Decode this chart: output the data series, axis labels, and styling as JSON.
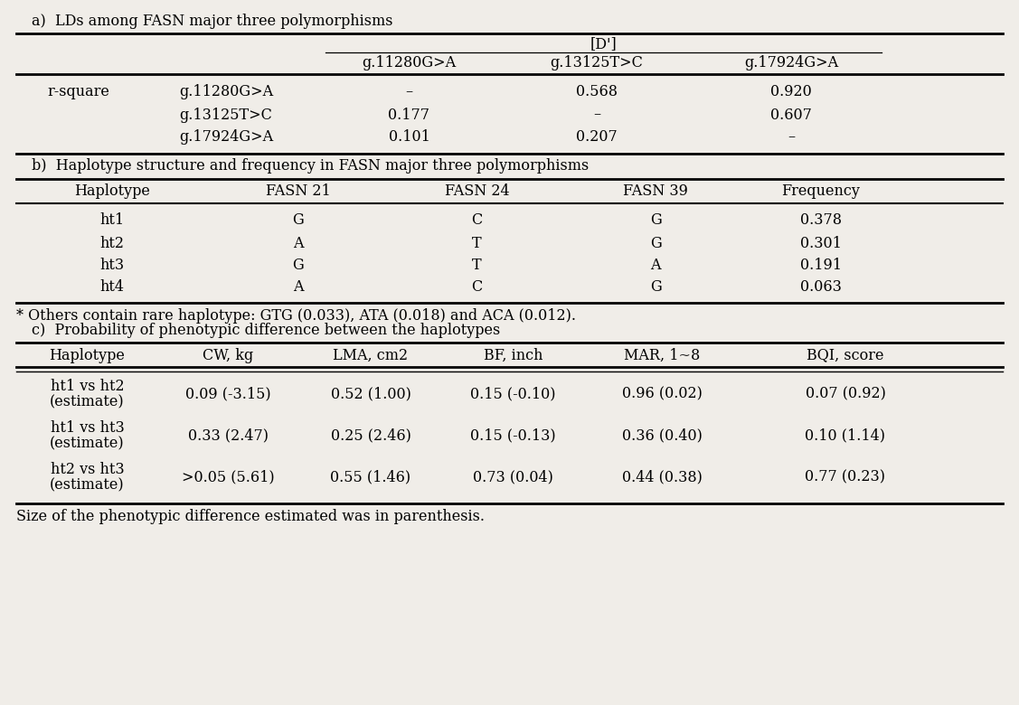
{
  "title_a": "a)  LDs among FASN major three polymorphisms",
  "title_b": "b)  Haplotype structure and frequency in FASN major three polymorphisms",
  "title_c": "c)  Probability of phenotypic difference between the haplotypes",
  "footnote_star": "* Others contain rare haplotype: GTG (0.033), ATA (0.018) and ACA (0.012).",
  "footnote_size": "Size of the phenotypic difference estimated was in parenthesis.",
  "table_a": {
    "dp_label": "[D']",
    "col_headers_3": [
      "g.11280G>A",
      "g.13125T>C",
      "g.17924G>A"
    ],
    "rows": [
      [
        "r-square",
        "g.11280G>A",
        "–",
        "0.568",
        "0.920"
      ],
      [
        "",
        "g.13125T>C",
        "0.177",
        "–",
        "0.607"
      ],
      [
        "",
        "g.17924G>A",
        "0.101",
        "0.207",
        "–"
      ]
    ]
  },
  "table_b": {
    "col_headers": [
      "Haplotype",
      "FASN 21",
      "FASN 24",
      "FASN 39",
      "Frequency"
    ],
    "rows": [
      [
        "ht1",
        "G",
        "C",
        "G",
        "0.378"
      ],
      [
        "ht2",
        "A",
        "T",
        "G",
        "0.301"
      ],
      [
        "ht3",
        "G",
        "T",
        "A",
        "0.191"
      ],
      [
        "ht4",
        "A",
        "C",
        "G",
        "0.063"
      ]
    ]
  },
  "table_c": {
    "col_headers": [
      "Haplotype",
      "CW, kg",
      "LMA, cm2",
      "BF, inch",
      "MAR, 1~8",
      "BQI, score"
    ],
    "rows": [
      [
        "ht1 vs ht2\n(estimate)",
        "0.09 (-3.15)",
        "0.52 (1.00)",
        "0.15 (-0.10)",
        "0.96 (0.02)",
        "0.07 (0.92)"
      ],
      [
        "ht1 vs ht3\n(estimate)",
        "0.33 (2.47)",
        "0.25 (2.46)",
        "0.15 (-0.13)",
        "0.36 (0.40)",
        "0.10 (1.14)"
      ],
      [
        "ht2 vs ht3\n(estimate)",
        ">0.05 (5.61)",
        "0.55 (1.46)",
        "0.73 (0.04)",
        "0.44 (0.38)",
        "0.77 (0.23)"
      ]
    ]
  },
  "bg_color": "#f0ede8",
  "font_family": "DejaVu Serif",
  "font_size": 11.5
}
